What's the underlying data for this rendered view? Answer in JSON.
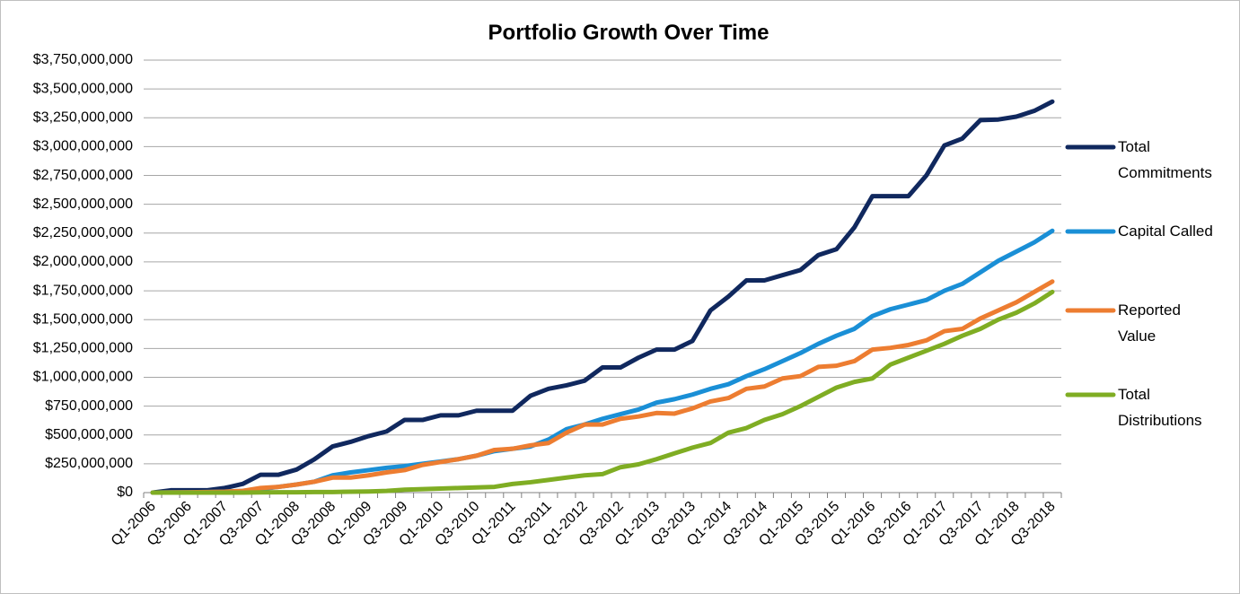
{
  "chart_data": {
    "type": "line",
    "title": "Portfolio Growth Over Time",
    "categories": [
      "Q1-2006",
      null,
      "Q3-2006",
      null,
      "Q1-2007",
      null,
      "Q3-2007",
      null,
      "Q1-2008",
      null,
      "Q3-2008",
      null,
      "Q1-2009",
      null,
      "Q3-2009",
      null,
      "Q1-2010",
      null,
      "Q3-2010",
      null,
      "Q1-2011",
      null,
      "Q3-2011",
      null,
      "Q1-2012",
      null,
      "Q3-2012",
      null,
      "Q1-2013",
      null,
      "Q3-2013",
      null,
      "Q1-2014",
      null,
      "Q3-2014",
      null,
      "Q1-2015",
      null,
      "Q3-2015",
      null,
      "Q1-2016",
      null,
      "Q3-2016",
      null,
      "Q1-2017",
      null,
      "Q3-2017",
      null,
      "Q1-2018",
      null,
      "Q3-2018"
    ],
    "series": [
      {
        "name": "Total Commitments",
        "color": "#10285e",
        "values": [
          0,
          20000000,
          20000000,
          20000000,
          40000000,
          75000000,
          155000000,
          155000000,
          200000000,
          290000000,
          400000000,
          440000000,
          490000000,
          530000000,
          630000000,
          630000000,
          670000000,
          670000000,
          710000000,
          710000000,
          710000000,
          840000000,
          900000000,
          930000000,
          970000000,
          1085000000,
          1085000000,
          1170000000,
          1240000000,
          1240000000,
          1315000000,
          1580000000,
          1700000000,
          1840000000,
          1840000000,
          1885000000,
          1930000000,
          2060000000,
          2110000000,
          2300000000,
          2570000000,
          2570000000,
          2570000000,
          2750000000,
          3010000000,
          3070000000,
          3230000000,
          3235000000,
          3260000000,
          3310000000,
          3390000000
        ]
      },
      {
        "name": "Capital Called",
        "color": "#1a8fd6",
        "values": [
          0,
          2000000,
          3000000,
          5000000,
          8000000,
          15000000,
          30000000,
          50000000,
          70000000,
          95000000,
          150000000,
          175000000,
          195000000,
          215000000,
          230000000,
          250000000,
          270000000,
          290000000,
          320000000,
          360000000,
          380000000,
          400000000,
          460000000,
          550000000,
          590000000,
          640000000,
          680000000,
          720000000,
          780000000,
          810000000,
          850000000,
          900000000,
          940000000,
          1010000000,
          1070000000,
          1140000000,
          1210000000,
          1290000000,
          1360000000,
          1420000000,
          1530000000,
          1590000000,
          1630000000,
          1670000000,
          1750000000,
          1810000000,
          1910000000,
          2010000000,
          2090000000,
          2170000000,
          2270000000
        ]
      },
      {
        "name": "Reported Value",
        "color": "#ed7d31",
        "values": [
          0,
          2000000,
          3000000,
          5000000,
          8000000,
          15000000,
          40000000,
          50000000,
          70000000,
          95000000,
          130000000,
          130000000,
          150000000,
          175000000,
          195000000,
          240000000,
          265000000,
          290000000,
          320000000,
          370000000,
          380000000,
          410000000,
          430000000,
          520000000,
          590000000,
          590000000,
          640000000,
          660000000,
          690000000,
          685000000,
          730000000,
          790000000,
          820000000,
          900000000,
          920000000,
          990000000,
          1010000000,
          1090000000,
          1100000000,
          1140000000,
          1240000000,
          1255000000,
          1280000000,
          1320000000,
          1400000000,
          1420000000,
          1510000000,
          1580000000,
          1650000000,
          1740000000,
          1830000000
        ]
      },
      {
        "name": "Total Distributions",
        "color": "#7fad23",
        "values": [
          0,
          0,
          0,
          0,
          0,
          0,
          2000000,
          3000000,
          3000000,
          5000000,
          5000000,
          8000000,
          10000000,
          15000000,
          25000000,
          30000000,
          35000000,
          40000000,
          45000000,
          50000000,
          75000000,
          90000000,
          110000000,
          130000000,
          150000000,
          160000000,
          220000000,
          245000000,
          290000000,
          340000000,
          390000000,
          430000000,
          520000000,
          560000000,
          630000000,
          680000000,
          750000000,
          830000000,
          910000000,
          960000000,
          990000000,
          1110000000,
          1170000000,
          1230000000,
          1290000000,
          1360000000,
          1420000000,
          1500000000,
          1560000000,
          1640000000,
          1740000000
        ]
      }
    ],
    "ylim": [
      0,
      3750000000
    ],
    "yticks": [
      {
        "value": 0,
        "label": "$0"
      },
      {
        "value": 250000000,
        "label": "$250,000,000"
      },
      {
        "value": 500000000,
        "label": "$500,000,000"
      },
      {
        "value": 750000000,
        "label": "$750,000,000"
      },
      {
        "value": 1000000000,
        "label": "$1,000,000,000"
      },
      {
        "value": 1250000000,
        "label": "$1,250,000,000"
      },
      {
        "value": 1500000000,
        "label": "$1,500,000,000"
      },
      {
        "value": 1750000000,
        "label": "$1,750,000,000"
      },
      {
        "value": 2000000000,
        "label": "$2,000,000,000"
      },
      {
        "value": 2250000000,
        "label": "$2,250,000,000"
      },
      {
        "value": 2500000000,
        "label": "$2,500,000,000"
      },
      {
        "value": 2750000000,
        "label": "$2,750,000,000"
      },
      {
        "value": 3000000000,
        "label": "$3,000,000,000"
      },
      {
        "value": 3250000000,
        "label": "$3,250,000,000"
      },
      {
        "value": 3500000000,
        "label": "$3,500,000,000"
      },
      {
        "value": 3750000000,
        "label": "$3,750,000,000"
      }
    ],
    "grid": true,
    "legend": "right"
  }
}
